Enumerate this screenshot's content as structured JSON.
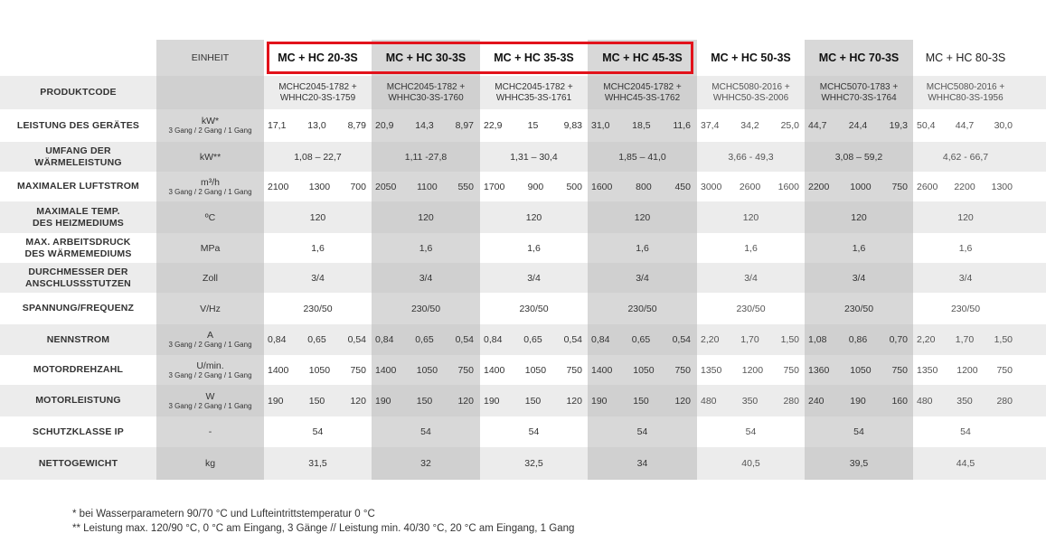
{
  "table": {
    "unit_header": "EINHEIT",
    "models": [
      "MC + HC 20-3S",
      "MC + HC 30-3S",
      "MC + HC 35-3S",
      "MC + HC 45-3S",
      "MC + HC 50-3S",
      "MC + HC 70-3S",
      "MC + HC 80-3S"
    ],
    "highlighted_models": [
      "MC + HC 20-3S",
      "MC + HC 30-3S",
      "MC + HC 35-3S",
      "MC + HC 45-3S"
    ],
    "highlight_color": "#e2121b",
    "rows": [
      {
        "label": "PRODUKTCODE",
        "unit": "",
        "unit_sub": "",
        "values": [
          [
            "MCHC2045-1782 +",
            "WHHC20-3S-1759"
          ],
          [
            "MCHC2045-1782 +",
            "WHHC30-3S-1760"
          ],
          [
            "MCHC2045-1782 +",
            "WHHC35-3S-1761"
          ],
          [
            "MCHC2045-1782 +",
            "WHHC45-3S-1762"
          ],
          [
            "MCHC5080-2016 +",
            "WHHC50-3S-2006"
          ],
          [
            "MCHC5070-1783 +",
            "WHHC70-3S-1764"
          ],
          [
            "MCHC5080-2016 +",
            "WHHC80-3S-1956"
          ]
        ]
      },
      {
        "label": "LEISTUNG DES GERÄTES",
        "unit": "kW*",
        "unit_sub": "3 Gang / 2 Gang / 1 Gang",
        "values": [
          [
            "17,1",
            "13,0",
            "8,79"
          ],
          [
            "20,9",
            "14,3",
            "8,97"
          ],
          [
            "22,9",
            "15",
            "9,83"
          ],
          [
            "31,0",
            "18,5",
            "11,6"
          ],
          [
            "37,4",
            "34,2",
            "25,0"
          ],
          [
            "44,7",
            "24,4",
            "19,3"
          ],
          [
            "50,4",
            "44,7",
            "30,0"
          ]
        ]
      },
      {
        "label": "UMFANG DER WÄRMELEISTUNG",
        "label_lines": [
          "UMFANG DER",
          "WÄRMELEISTUNG"
        ],
        "unit": "kW**",
        "unit_sub": "",
        "values": [
          "1,08 – 22,7",
          "1,11 -27,8",
          "1,31 – 30,4",
          "1,85 – 41,0",
          "3,66 - 49,3",
          "3,08 – 59,2",
          "4,62 - 66,7"
        ]
      },
      {
        "label": "MAXIMALER LUFTSTROM",
        "unit": "m³/h",
        "unit_sub": "3 Gang / 2 Gang / 1 Gang",
        "values": [
          [
            "2100",
            "1300",
            "700"
          ],
          [
            "2050",
            "1100",
            "550"
          ],
          [
            "1700",
            "900",
            "500"
          ],
          [
            "1600",
            "800",
            "450"
          ],
          [
            "3000",
            "2600",
            "1600"
          ],
          [
            "2200",
            "1000",
            "750"
          ],
          [
            "2600",
            "2200",
            "1300"
          ]
        ]
      },
      {
        "label": "MAXIMALE TEMP. DES HEIZMEDIUMS",
        "label_lines": [
          "MAXIMALE TEMP.",
          "DES HEIZMEDIUMS"
        ],
        "unit": "ºC",
        "unit_sub": "",
        "values": [
          "120",
          "120",
          "120",
          "120",
          "120",
          "120",
          "120"
        ]
      },
      {
        "label": "MAX. ARBEITSDRUCK DES WÄRMEMEDIUMS",
        "label_lines": [
          "MAX. ARBEITSDRUCK",
          "DES WÄRMEMEDIUMS"
        ],
        "unit": "MPa",
        "unit_sub": "",
        "values": [
          "1,6",
          "1,6",
          "1,6",
          "1,6",
          "1,6",
          "1,6",
          "1,6"
        ]
      },
      {
        "label": "DURCHMESSER DER ANSCHLUSSSTUTZEN",
        "label_lines": [
          "DURCHMESSER DER",
          "ANSCHLUSSSTUTZEN"
        ],
        "unit": "Zoll",
        "unit_sub": "",
        "values": [
          "3/4",
          "3/4",
          "3/4",
          "3/4",
          "3/4",
          "3/4",
          "3/4"
        ]
      },
      {
        "label": "SPANNUNG/FREQUENZ",
        "unit": "V/Hz",
        "unit_sub": "",
        "values": [
          "230/50",
          "230/50",
          "230/50",
          "230/50",
          "230/50",
          "230/50",
          "230/50"
        ]
      },
      {
        "label": "NENNSTROM",
        "unit": "A",
        "unit_sub": "3 Gang / 2 Gang / 1 Gang",
        "values": [
          [
            "0,84",
            "0,65",
            "0,54"
          ],
          [
            "0,84",
            "0,65",
            "0,54"
          ],
          [
            "0,84",
            "0,65",
            "0,54"
          ],
          [
            "0,84",
            "0,65",
            "0,54"
          ],
          [
            "2,20",
            "1,70",
            "1,50"
          ],
          [
            "1,08",
            "0,86",
            "0,70"
          ],
          [
            "2,20",
            "1,70",
            "1,50"
          ]
        ]
      },
      {
        "label": "MOTORDREHZAHL",
        "unit": "U/min.",
        "unit_sub": "3 Gang / 2 Gang / 1 Gang",
        "values": [
          [
            "1400",
            "1050",
            "750"
          ],
          [
            "1400",
            "1050",
            "750"
          ],
          [
            "1400",
            "1050",
            "750"
          ],
          [
            "1400",
            "1050",
            "750"
          ],
          [
            "1350",
            "1200",
            "750"
          ],
          [
            "1360",
            "1050",
            "750"
          ],
          [
            "1350",
            "1200",
            "750"
          ]
        ]
      },
      {
        "label": "MOTORLEISTUNG",
        "unit": "W",
        "unit_sub": "3 Gang / 2 Gang / 1 Gang",
        "values": [
          [
            "190",
            "150",
            "120"
          ],
          [
            "190",
            "150",
            "120"
          ],
          [
            "190",
            "150",
            "120"
          ],
          [
            "190",
            "150",
            "120"
          ],
          [
            "480",
            "350",
            "280"
          ],
          [
            "240",
            "190",
            "160"
          ],
          [
            "480",
            "350",
            "280"
          ]
        ]
      },
      {
        "label": "SCHUTZKLASSE IP",
        "unit": "-",
        "unit_sub": "",
        "values": [
          "54",
          "54",
          "54",
          "54",
          "54",
          "54",
          "54"
        ]
      },
      {
        "label": "NETTOGEWICHT",
        "unit": "kg",
        "unit_sub": "",
        "values": [
          "31,5",
          "32",
          "32,5",
          "34",
          "40,5",
          "39,5",
          "44,5"
        ]
      }
    ]
  },
  "footnotes": [
    "* bei Wasserparametern 90/70 °C und Lufteintrittstemperatur 0 °C",
    "** Leistung max. 120/90 °C, 0 °C am Eingang, 3 Gänge // Leistung min. 40/30 °C, 20 °C am Eingang, 1 Gang"
  ]
}
